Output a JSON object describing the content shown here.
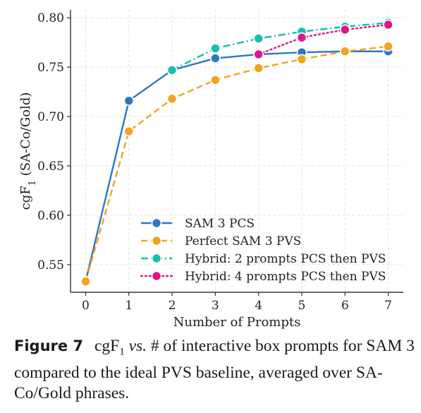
{
  "chart_data": {
    "type": "line",
    "xlabel": "Number of Prompts",
    "ylabel": "cgF1 (SA-Co/Gold)",
    "xlim": [
      -0.35,
      7.35
    ],
    "ylim": [
      0.522,
      0.808
    ],
    "x_ticks": [
      "0",
      "1",
      "2",
      "3",
      "4",
      "5",
      "6",
      "7"
    ],
    "y_ticks": [
      "0.55",
      "0.60",
      "0.65",
      "0.70",
      "0.75",
      "0.80"
    ],
    "grid": true,
    "legend_position": "lower-center",
    "series": [
      {
        "name": "SAM 3 PCS",
        "color": "#2a78c2",
        "line_style": "solid",
        "x": [
          0,
          1,
          2,
          3,
          4,
          5,
          6,
          7
        ],
        "y": [
          0.533,
          0.716,
          0.747,
          0.759,
          0.763,
          0.765,
          0.766,
          0.766
        ]
      },
      {
        "name": "Perfect SAM 3 PVS",
        "color": "#f2a31f",
        "line_style": "dashed",
        "x": [
          0,
          1,
          2,
          3,
          4,
          5,
          6,
          7
        ],
        "y": [
          0.533,
          0.685,
          0.718,
          0.737,
          0.749,
          0.758,
          0.766,
          0.771
        ]
      },
      {
        "name": "Hybrid: 2 prompts PCS then PVS",
        "color": "#14bfae",
        "line_style": "dashdot",
        "x": [
          2,
          3,
          4,
          5,
          6,
          7
        ],
        "y": [
          0.747,
          0.769,
          0.779,
          0.786,
          0.791,
          0.795
        ]
      },
      {
        "name": "Hybrid: 4 prompts PCS then PVS",
        "color": "#e0148c",
        "line_style": "dotted",
        "x": [
          4,
          5,
          6,
          7
        ],
        "y": [
          0.763,
          0.78,
          0.788,
          0.793
        ]
      }
    ]
  },
  "caption": {
    "label": "Figure 7",
    "metric": "cgF",
    "metric_sub": "1",
    "vs": "vs.",
    "text": "# of interactive box prompts for SAM 3 compared to the ideal PVS baseline, averaged over SA-Co/Gold phrases."
  }
}
